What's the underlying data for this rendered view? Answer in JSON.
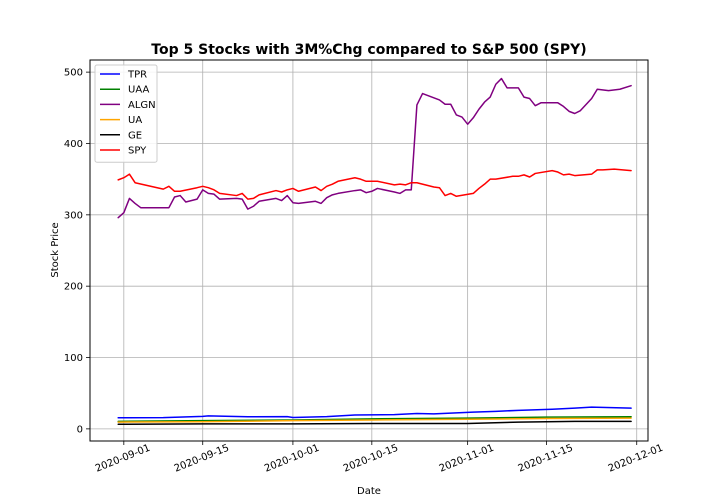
{
  "chart_data": {
    "type": "line",
    "title": "Top 5 Stocks with 3M%Chg compared to S&P 500 (SPY)",
    "xlabel": "Date",
    "ylabel": "Stock Price",
    "xlim": [
      "2020-08-26",
      "2020-12-03"
    ],
    "ylim": [
      -17,
      517
    ],
    "grid": true,
    "legend_position": "top-left",
    "x_ticks": [
      "2020-09-01",
      "2020-09-15",
      "2020-10-01",
      "2020-10-15",
      "2020-11-01",
      "2020-11-15",
      "2020-12-01"
    ],
    "y_ticks": [
      0,
      100,
      200,
      300,
      400,
      500
    ],
    "series": [
      {
        "name": "TPR",
        "color": "#0000ff",
        "points": [
          [
            "2020-08-31",
            15.5
          ],
          [
            "2020-09-08",
            15.8
          ],
          [
            "2020-09-15",
            17.5
          ],
          [
            "2020-09-16",
            18.2
          ],
          [
            "2020-09-23",
            17.0
          ],
          [
            "2020-09-30",
            17.2
          ],
          [
            "2020-10-01",
            16.0
          ],
          [
            "2020-10-07",
            17.2
          ],
          [
            "2020-10-12",
            19.5
          ],
          [
            "2020-10-19",
            20.0
          ],
          [
            "2020-10-23",
            21.5
          ],
          [
            "2020-10-26",
            21.0
          ],
          [
            "2020-10-30",
            22.5
          ],
          [
            "2020-11-02",
            23.5
          ],
          [
            "2020-11-06",
            24.5
          ],
          [
            "2020-11-10",
            26.0
          ],
          [
            "2020-11-16",
            27.5
          ],
          [
            "2020-11-20",
            29.0
          ],
          [
            "2020-11-23",
            30.5
          ],
          [
            "2020-11-30",
            29.0
          ]
        ]
      },
      {
        "name": "UAA",
        "color": "#008000",
        "points": [
          [
            "2020-08-31",
            10.5
          ],
          [
            "2020-09-15",
            11.5
          ],
          [
            "2020-10-01",
            12.5
          ],
          [
            "2020-10-15",
            14.0
          ],
          [
            "2020-11-01",
            15.0
          ],
          [
            "2020-11-15",
            16.5
          ],
          [
            "2020-11-30",
            17.0
          ]
        ]
      },
      {
        "name": "ALGN",
        "color": "#800080",
        "points": [
          [
            "2020-08-31",
            296
          ],
          [
            "2020-09-01",
            303
          ],
          [
            "2020-09-02",
            323
          ],
          [
            "2020-09-03",
            316
          ],
          [
            "2020-09-04",
            310
          ],
          [
            "2020-09-08",
            310
          ],
          [
            "2020-09-09",
            310
          ],
          [
            "2020-09-10",
            325
          ],
          [
            "2020-09-11",
            327
          ],
          [
            "2020-09-12",
            318
          ],
          [
            "2020-09-14",
            322
          ],
          [
            "2020-09-15",
            335
          ],
          [
            "2020-09-16",
            330
          ],
          [
            "2020-09-17",
            329
          ],
          [
            "2020-09-18",
            322
          ],
          [
            "2020-09-21",
            323
          ],
          [
            "2020-09-22",
            322
          ],
          [
            "2020-09-23",
            308
          ],
          [
            "2020-09-24",
            312
          ],
          [
            "2020-09-25",
            319
          ],
          [
            "2020-09-28",
            323
          ],
          [
            "2020-09-29",
            320
          ],
          [
            "2020-09-30",
            327
          ],
          [
            "2020-10-01",
            317
          ],
          [
            "2020-10-02",
            316
          ],
          [
            "2020-10-05",
            319
          ],
          [
            "2020-10-06",
            316
          ],
          [
            "2020-10-07",
            324
          ],
          [
            "2020-10-08",
            328
          ],
          [
            "2020-10-09",
            330
          ],
          [
            "2020-10-12",
            334
          ],
          [
            "2020-10-13",
            335
          ],
          [
            "2020-10-14",
            331
          ],
          [
            "2020-10-15",
            333
          ],
          [
            "2020-10-16",
            337
          ],
          [
            "2020-10-19",
            332
          ],
          [
            "2020-10-20",
            330
          ],
          [
            "2020-10-21",
            335
          ],
          [
            "2020-10-22",
            335
          ],
          [
            "2020-10-23",
            454
          ],
          [
            "2020-10-24",
            470
          ],
          [
            "2020-10-27",
            461
          ],
          [
            "2020-10-28",
            455
          ],
          [
            "2020-10-29",
            455
          ],
          [
            "2020-10-30",
            440
          ],
          [
            "2020-10-31",
            437
          ],
          [
            "2020-11-01",
            427
          ],
          [
            "2020-11-02",
            436
          ],
          [
            "2020-11-03",
            448
          ],
          [
            "2020-11-04",
            458
          ],
          [
            "2020-11-05",
            465
          ],
          [
            "2020-11-06",
            483
          ],
          [
            "2020-11-07",
            491
          ],
          [
            "2020-11-08",
            478
          ],
          [
            "2020-11-10",
            478
          ],
          [
            "2020-11-11",
            465
          ],
          [
            "2020-11-12",
            463
          ],
          [
            "2020-11-13",
            453
          ],
          [
            "2020-11-14",
            457
          ],
          [
            "2020-11-16",
            457
          ],
          [
            "2020-11-17",
            457
          ],
          [
            "2020-11-18",
            452
          ],
          [
            "2020-11-19",
            445
          ],
          [
            "2020-11-20",
            442
          ],
          [
            "2020-11-21",
            446
          ],
          [
            "2020-11-23",
            463
          ],
          [
            "2020-11-24",
            476
          ],
          [
            "2020-11-26",
            474
          ],
          [
            "2020-11-28",
            476
          ],
          [
            "2020-11-30",
            481
          ]
        ]
      },
      {
        "name": "UA",
        "color": "#ffa500",
        "points": [
          [
            "2020-08-31",
            9.5
          ],
          [
            "2020-09-15",
            10.0
          ],
          [
            "2020-10-01",
            11.5
          ],
          [
            "2020-10-15",
            12.5
          ],
          [
            "2020-11-01",
            13.5
          ],
          [
            "2020-11-15",
            14.5
          ],
          [
            "2020-11-30",
            15.0
          ]
        ]
      },
      {
        "name": "GE",
        "color": "#000000",
        "points": [
          [
            "2020-08-31",
            6.5
          ],
          [
            "2020-09-15",
            7.0
          ],
          [
            "2020-10-01",
            7.0
          ],
          [
            "2020-10-15",
            7.5
          ],
          [
            "2020-11-01",
            7.5
          ],
          [
            "2020-11-10",
            9.5
          ],
          [
            "2020-11-20",
            10.5
          ],
          [
            "2020-11-30",
            10.5
          ]
        ]
      },
      {
        "name": "SPY",
        "color": "#ff0000",
        "points": [
          [
            "2020-08-31",
            349
          ],
          [
            "2020-09-01",
            352
          ],
          [
            "2020-09-02",
            357
          ],
          [
            "2020-09-03",
            345
          ],
          [
            "2020-09-08",
            336
          ],
          [
            "2020-09-09",
            340
          ],
          [
            "2020-09-10",
            333
          ],
          [
            "2020-09-11",
            333
          ],
          [
            "2020-09-14",
            338
          ],
          [
            "2020-09-15",
            340
          ],
          [
            "2020-09-16",
            338
          ],
          [
            "2020-09-17",
            335
          ],
          [
            "2020-09-18",
            330
          ],
          [
            "2020-09-21",
            327
          ],
          [
            "2020-09-22",
            330
          ],
          [
            "2020-09-23",
            322
          ],
          [
            "2020-09-24",
            323
          ],
          [
            "2020-09-25",
            328
          ],
          [
            "2020-09-28",
            334
          ],
          [
            "2020-09-29",
            332
          ],
          [
            "2020-09-30",
            335
          ],
          [
            "2020-10-01",
            337
          ],
          [
            "2020-10-02",
            333
          ],
          [
            "2020-10-05",
            339
          ],
          [
            "2020-10-06",
            334
          ],
          [
            "2020-10-07",
            340
          ],
          [
            "2020-10-08",
            343
          ],
          [
            "2020-10-09",
            347
          ],
          [
            "2020-10-12",
            352
          ],
          [
            "2020-10-13",
            350
          ],
          [
            "2020-10-14",
            347
          ],
          [
            "2020-10-15",
            347
          ],
          [
            "2020-10-16",
            347
          ],
          [
            "2020-10-19",
            342
          ],
          [
            "2020-10-20",
            343
          ],
          [
            "2020-10-21",
            342
          ],
          [
            "2020-10-22",
            345
          ],
          [
            "2020-10-23",
            345
          ],
          [
            "2020-10-26",
            339
          ],
          [
            "2020-10-27",
            338
          ],
          [
            "2020-10-28",
            327
          ],
          [
            "2020-10-29",
            330
          ],
          [
            "2020-10-30",
            326
          ],
          [
            "2020-11-02",
            330
          ],
          [
            "2020-11-03",
            337
          ],
          [
            "2020-11-04",
            343
          ],
          [
            "2020-11-05",
            350
          ],
          [
            "2020-11-06",
            350
          ],
          [
            "2020-11-09",
            354
          ],
          [
            "2020-11-10",
            354
          ],
          [
            "2020-11-11",
            356
          ],
          [
            "2020-11-12",
            353
          ],
          [
            "2020-11-13",
            358
          ],
          [
            "2020-11-16",
            362
          ],
          [
            "2020-11-17",
            360
          ],
          [
            "2020-11-18",
            356
          ],
          [
            "2020-11-19",
            357
          ],
          [
            "2020-11-20",
            355
          ],
          [
            "2020-11-23",
            357
          ],
          [
            "2020-11-24",
            363
          ],
          [
            "2020-11-25",
            363
          ],
          [
            "2020-11-27",
            364
          ],
          [
            "2020-11-30",
            362
          ]
        ]
      }
    ]
  }
}
